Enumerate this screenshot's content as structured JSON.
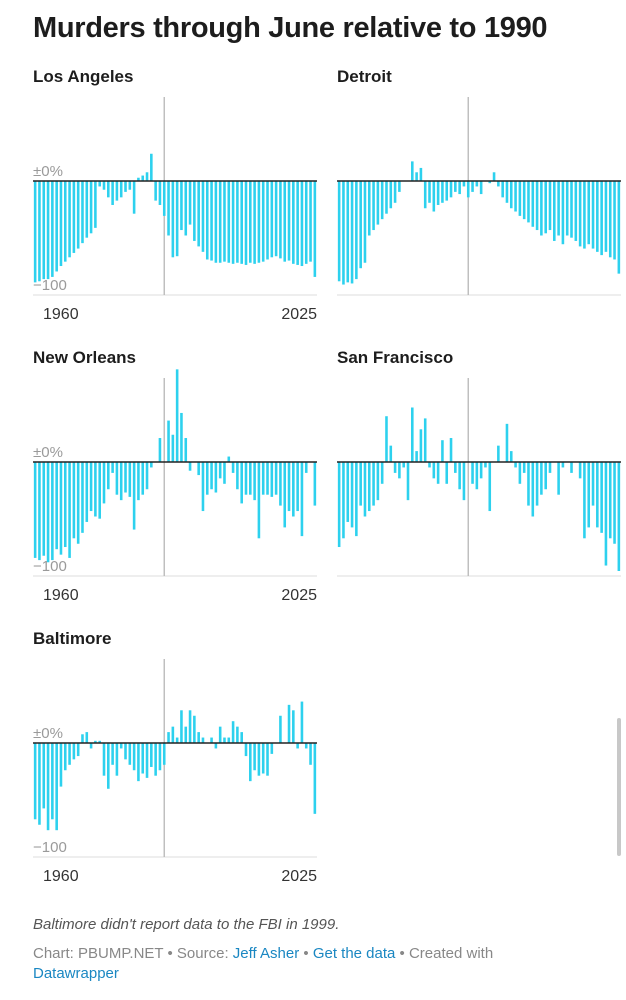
{
  "title": "Murders through June relative to 1990",
  "note": "Baltimore didn't report data to the FBI in 1999.",
  "credits": {
    "chart_prefix": "Chart: PBUMP.NET",
    "sep1": " • Source: ",
    "source": "Jeff Asher",
    "sep2": " • ",
    "get_data": "Get the data",
    "created_with": " • Created with",
    "tool": "Datawrapper"
  },
  "colors": {
    "bar": "#2dd1ee",
    "zero_line": "#222222",
    "ref_line": "#bbbbbb",
    "axis": "#dddddd"
  },
  "chart_data": [
    {
      "type": "bar",
      "title": "Los Angeles",
      "x_start": 1960,
      "x_end": 2025,
      "x_ticks": [
        "1960",
        "2025"
      ],
      "y_ticks": [
        "±0%",
        "−100"
      ],
      "ylim": [
        -100,
        100
      ],
      "reference_year": 1990,
      "values": [
        -93,
        -92,
        -90,
        -90,
        -88,
        -83,
        -78,
        -74,
        -70,
        -66,
        -62,
        -57,
        -52,
        -48,
        -43,
        -5,
        -8,
        -15,
        -22,
        -18,
        -15,
        -10,
        -8,
        -30,
        3,
        5,
        8,
        25,
        -18,
        -22,
        -32,
        -50,
        -70,
        -69,
        -45,
        -50,
        -40,
        -55,
        -60,
        -65,
        -72,
        -73,
        -75,
        -75,
        -74,
        -75,
        -76,
        -75,
        -76,
        -77,
        -75,
        -76,
        -75,
        -74,
        -72,
        -70,
        -69,
        -71,
        -74,
        -73,
        -76,
        -77,
        -78,
        -76,
        -74,
        -88
      ]
    },
    {
      "type": "bar",
      "title": "Detroit",
      "x_start": 1960,
      "x_end": 2025,
      "x_ticks": [],
      "y_ticks": [],
      "ylim": [
        -100,
        100
      ],
      "reference_year": 1990,
      "values": [
        -92,
        -95,
        -93,
        -94,
        -90,
        -80,
        -75,
        -50,
        -45,
        -40,
        -35,
        -30,
        -25,
        -20,
        -10,
        0,
        0,
        18,
        8,
        12,
        -25,
        -20,
        -28,
        -22,
        -20,
        -18,
        -15,
        -10,
        -12,
        -5,
        -15,
        -10,
        -5,
        -12,
        0,
        -2,
        8,
        -5,
        -15,
        -20,
        -25,
        -28,
        -32,
        -35,
        -38,
        -42,
        -45,
        -50,
        -48,
        -45,
        -55,
        -50,
        -58,
        -50,
        -52,
        -55,
        -60,
        -62,
        -58,
        -62,
        -65,
        -68,
        -65,
        -70,
        -72,
        -85
      ]
    },
    {
      "type": "bar",
      "title": "New Orleans",
      "x_start": 1960,
      "x_end": 2025,
      "x_ticks": [
        "1960",
        "2025"
      ],
      "y_ticks": [
        "±0%",
        "−100"
      ],
      "ylim": [
        -100,
        100
      ],
      "reference_year": 1990,
      "values": [
        -88,
        -90,
        -86,
        -92,
        -90,
        -80,
        -85,
        -78,
        -88,
        -70,
        -75,
        -65,
        -55,
        -45,
        -50,
        -52,
        -38,
        -25,
        -10,
        -30,
        -35,
        -28,
        -32,
        -62,
        -35,
        -30,
        -25,
        -5,
        0,
        22,
        0,
        38,
        25,
        85,
        45,
        22,
        -8,
        0,
        -12,
        -45,
        -30,
        -25,
        -28,
        -15,
        -20,
        5,
        -10,
        -25,
        -38,
        -30,
        -30,
        -35,
        -70,
        -30,
        -30,
        -32,
        -30,
        -40,
        -60,
        -45,
        -50,
        -45,
        -68,
        -10,
        0,
        -40
      ]
    },
    {
      "type": "bar",
      "title": "San Francisco",
      "x_start": 1960,
      "x_end": 2025,
      "x_ticks": [],
      "y_ticks": [],
      "ylim": [
        -100,
        100
      ],
      "reference_year": 1990,
      "values": [
        -78,
        -70,
        -55,
        -60,
        -68,
        -40,
        -50,
        -45,
        -40,
        -35,
        -20,
        42,
        15,
        -10,
        -15,
        -5,
        -35,
        50,
        10,
        30,
        40,
        -5,
        -15,
        -20,
        20,
        -20,
        22,
        -10,
        -25,
        -35,
        0,
        -20,
        -25,
        -15,
        -5,
        -45,
        0,
        15,
        0,
        35,
        10,
        -5,
        -20,
        -10,
        -40,
        -50,
        -40,
        -30,
        -25,
        -10,
        0,
        -30,
        -5,
        0,
        -10,
        0,
        -15,
        -70,
        -60,
        -40,
        -60,
        -65,
        -95,
        -70,
        -75,
        -100
      ]
    },
    {
      "type": "bar",
      "title": "Baltimore",
      "x_start": 1960,
      "x_end": 2025,
      "x_ticks": [
        "1960",
        "2025"
      ],
      "y_ticks": [
        "±0%",
        "−100"
      ],
      "ylim": [
        -100,
        100
      ],
      "reference_year": 1990,
      "values": [
        -70,
        -75,
        -60,
        -80,
        -70,
        -80,
        -40,
        -25,
        -20,
        -15,
        -12,
        8,
        10,
        -5,
        2,
        2,
        -30,
        -42,
        -20,
        -30,
        -5,
        -15,
        -20,
        -25,
        -35,
        -28,
        -32,
        -22,
        -30,
        -25,
        -20,
        10,
        15,
        5,
        30,
        15,
        30,
        25,
        10,
        5,
        0,
        5,
        -5,
        15,
        5,
        5,
        20,
        15,
        10,
        -12,
        -35,
        -25,
        -30,
        -28,
        -30,
        -10,
        0,
        25,
        0,
        35,
        30,
        -5,
        38,
        -5,
        -20,
        -65
      ]
    }
  ]
}
